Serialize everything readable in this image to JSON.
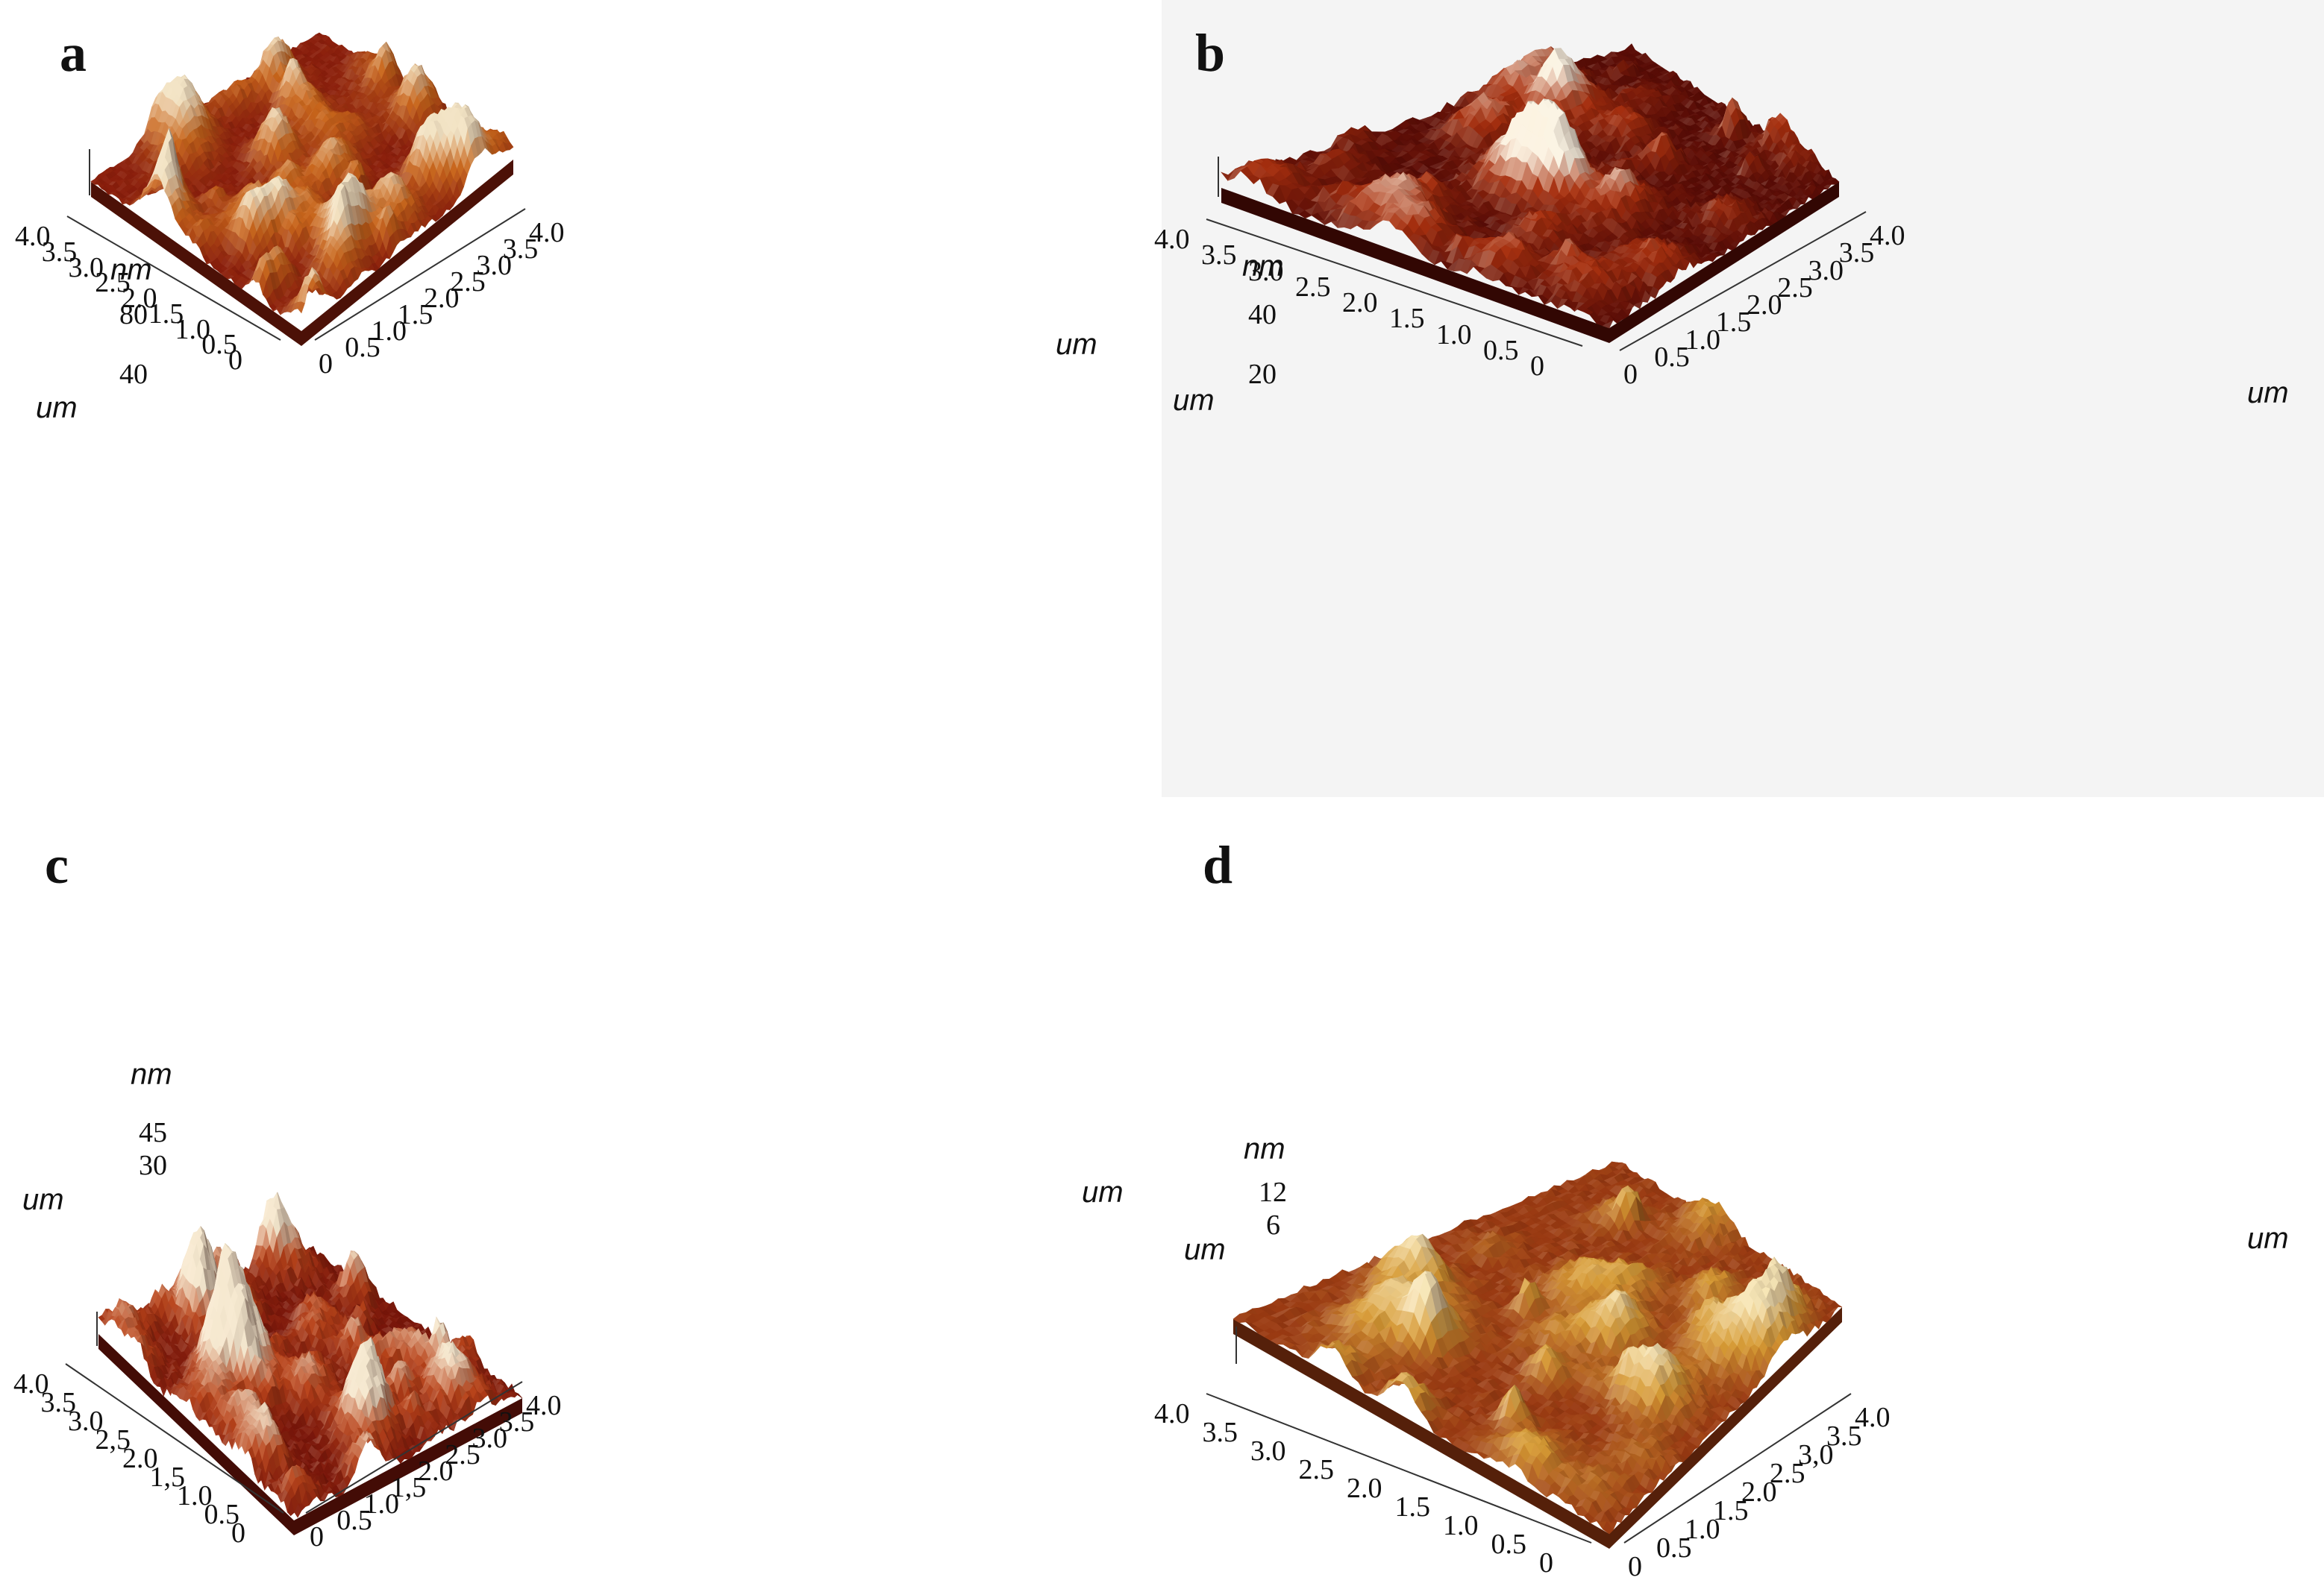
{
  "panels": [
    {
      "label": "a",
      "z_unit": "nm",
      "z_ticks": [
        "80",
        "40"
      ],
      "left_unit": "um",
      "right_unit": "um",
      "left_ticks": [
        "4.0",
        "3.5",
        "3.0",
        "2.5",
        "2.0",
        "1.5",
        "1.0",
        "0.5",
        "0"
      ],
      "right_ticks": [
        "0",
        "0.5",
        "1.0",
        "1.5",
        "2.0",
        "2.5",
        "3.0",
        "3.5",
        "4.0"
      ],
      "colors": {
        "base": "#8a1e0c",
        "mid": "#c8651b",
        "high": "#f2e3c4"
      },
      "background": "#ffffff"
    },
    {
      "label": "b",
      "z_unit": "nm",
      "z_ticks": [
        "40",
        "20"
      ],
      "left_unit": "um",
      "right_unit": "um",
      "left_ticks": [
        "4.0",
        "3.5",
        "3.0",
        "2.5",
        "2.0",
        "1.5",
        "1.0",
        "0.5",
        "0"
      ],
      "right_ticks": [
        "0",
        "0.5",
        "1.0",
        "1.5",
        "2.0",
        "2.5",
        "3.0",
        "3.5",
        "4.0"
      ],
      "colors": {
        "base": "#5a0c06",
        "mid": "#a8300f",
        "high": "#fbf4e4"
      },
      "background": "#f4f4f4"
    },
    {
      "label": "c",
      "z_unit": "nm",
      "z_ticks": [
        "45",
        "30"
      ],
      "left_unit": "um",
      "right_unit": "um",
      "left_ticks": [
        "4.0",
        "3.5",
        "3.0",
        "2,5",
        "2.0",
        "1,5",
        "1.0",
        "0.5",
        "0"
      ],
      "right_ticks": [
        "0",
        "0.5",
        "1.0",
        "1,5",
        "2.0",
        "2.5",
        "3.0",
        "3.5",
        "4.0"
      ],
      "colors": {
        "base": "#7a160a",
        "mid": "#b8431a",
        "high": "#f5e8cf"
      },
      "background": "#ffffff"
    },
    {
      "label": "d",
      "z_unit": "nm",
      "z_ticks": [
        "12",
        "6"
      ],
      "left_unit": "um",
      "right_unit": "um",
      "left_ticks": [
        "4.0",
        "3.5",
        "3.0",
        "2.5",
        "2.0",
        "1.5",
        "1.0",
        "0.5",
        "0"
      ],
      "right_ticks": [
        "0",
        "0.5",
        "1.0",
        "1.5",
        "2.0",
        "2.5",
        "3,0",
        "3.5",
        "4.0"
      ],
      "colors": {
        "base": "#9a3a12",
        "mid": "#d69a34",
        "high": "#f7e6b6"
      },
      "background": "#ffffff"
    }
  ]
}
